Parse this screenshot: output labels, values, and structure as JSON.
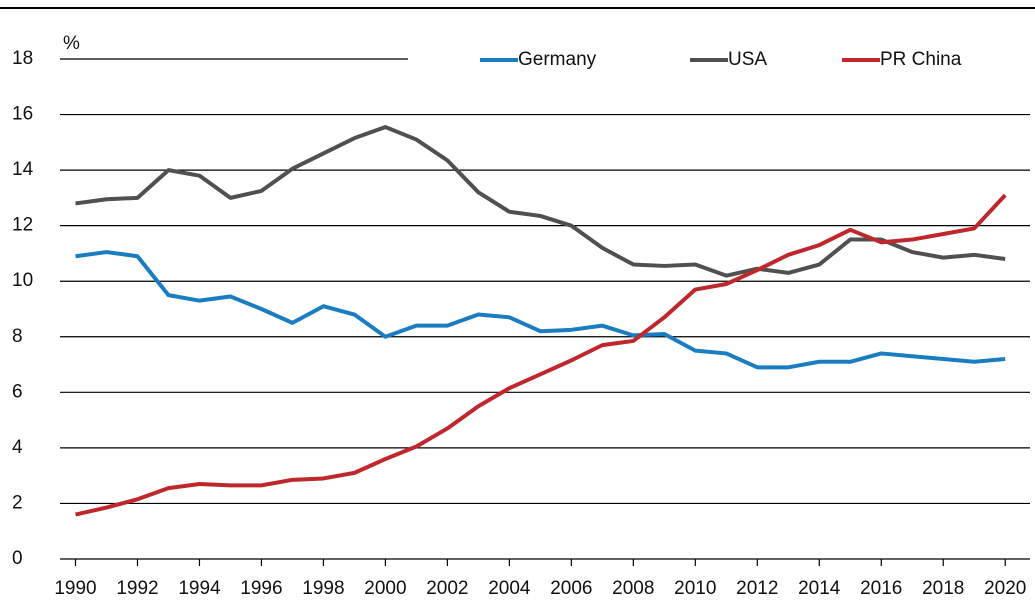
{
  "chart_data": {
    "type": "line",
    "y_unit_label": "%",
    "x": [
      1990,
      1991,
      1992,
      1993,
      1994,
      1995,
      1996,
      1997,
      1998,
      1999,
      2000,
      2001,
      2002,
      2003,
      2004,
      2005,
      2006,
      2007,
      2008,
      2009,
      2010,
      2011,
      2012,
      2013,
      2014,
      2015,
      2016,
      2017,
      2018,
      2019,
      2020
    ],
    "series": [
      {
        "name": "Germany",
        "color": "#1a7dc2",
        "values": [
          10.9,
          11.05,
          10.9,
          9.5,
          9.3,
          9.45,
          9.0,
          8.5,
          9.1,
          8.8,
          8.0,
          8.4,
          8.4,
          8.8,
          8.7,
          8.2,
          8.25,
          8.4,
          8.05,
          8.1,
          7.5,
          7.4,
          6.9,
          6.9,
          7.1,
          7.1,
          7.4,
          7.3,
          7.2,
          7.1,
          7.2
        ]
      },
      {
        "name": "USA",
        "color": "#505050",
        "values": [
          12.8,
          12.95,
          13.0,
          14.0,
          13.8,
          13.0,
          13.25,
          14.05,
          14.6,
          15.15,
          15.55,
          15.1,
          14.35,
          13.2,
          12.5,
          12.35,
          12.0,
          11.2,
          10.6,
          10.55,
          10.6,
          10.2,
          10.45,
          10.3,
          10.6,
          11.5,
          11.5,
          11.05,
          10.85,
          10.95,
          10.8
        ]
      },
      {
        "name": "PR China",
        "color": "#c0272d",
        "values": [
          1.6,
          1.85,
          2.15,
          2.55,
          2.7,
          2.65,
          2.65,
          2.85,
          2.9,
          3.1,
          3.6,
          4.05,
          4.7,
          5.5,
          6.15,
          6.65,
          7.15,
          7.7,
          7.85,
          8.7,
          9.7,
          9.9,
          10.4,
          10.95,
          11.3,
          11.85,
          11.4,
          11.5,
          11.7,
          11.9,
          13.1
        ]
      }
    ],
    "xlim": [
      1989.5,
      2020.8
    ],
    "xticks": [
      1990,
      1992,
      1994,
      1996,
      1998,
      2000,
      2002,
      2004,
      2006,
      2008,
      2010,
      2012,
      2014,
      2016,
      2018,
      2020
    ],
    "ylim": [
      0,
      18.5
    ],
    "yticks": [
      0,
      2,
      4,
      6,
      8,
      10,
      12,
      14,
      16,
      18
    ],
    "grid": true,
    "legend": "top"
  }
}
